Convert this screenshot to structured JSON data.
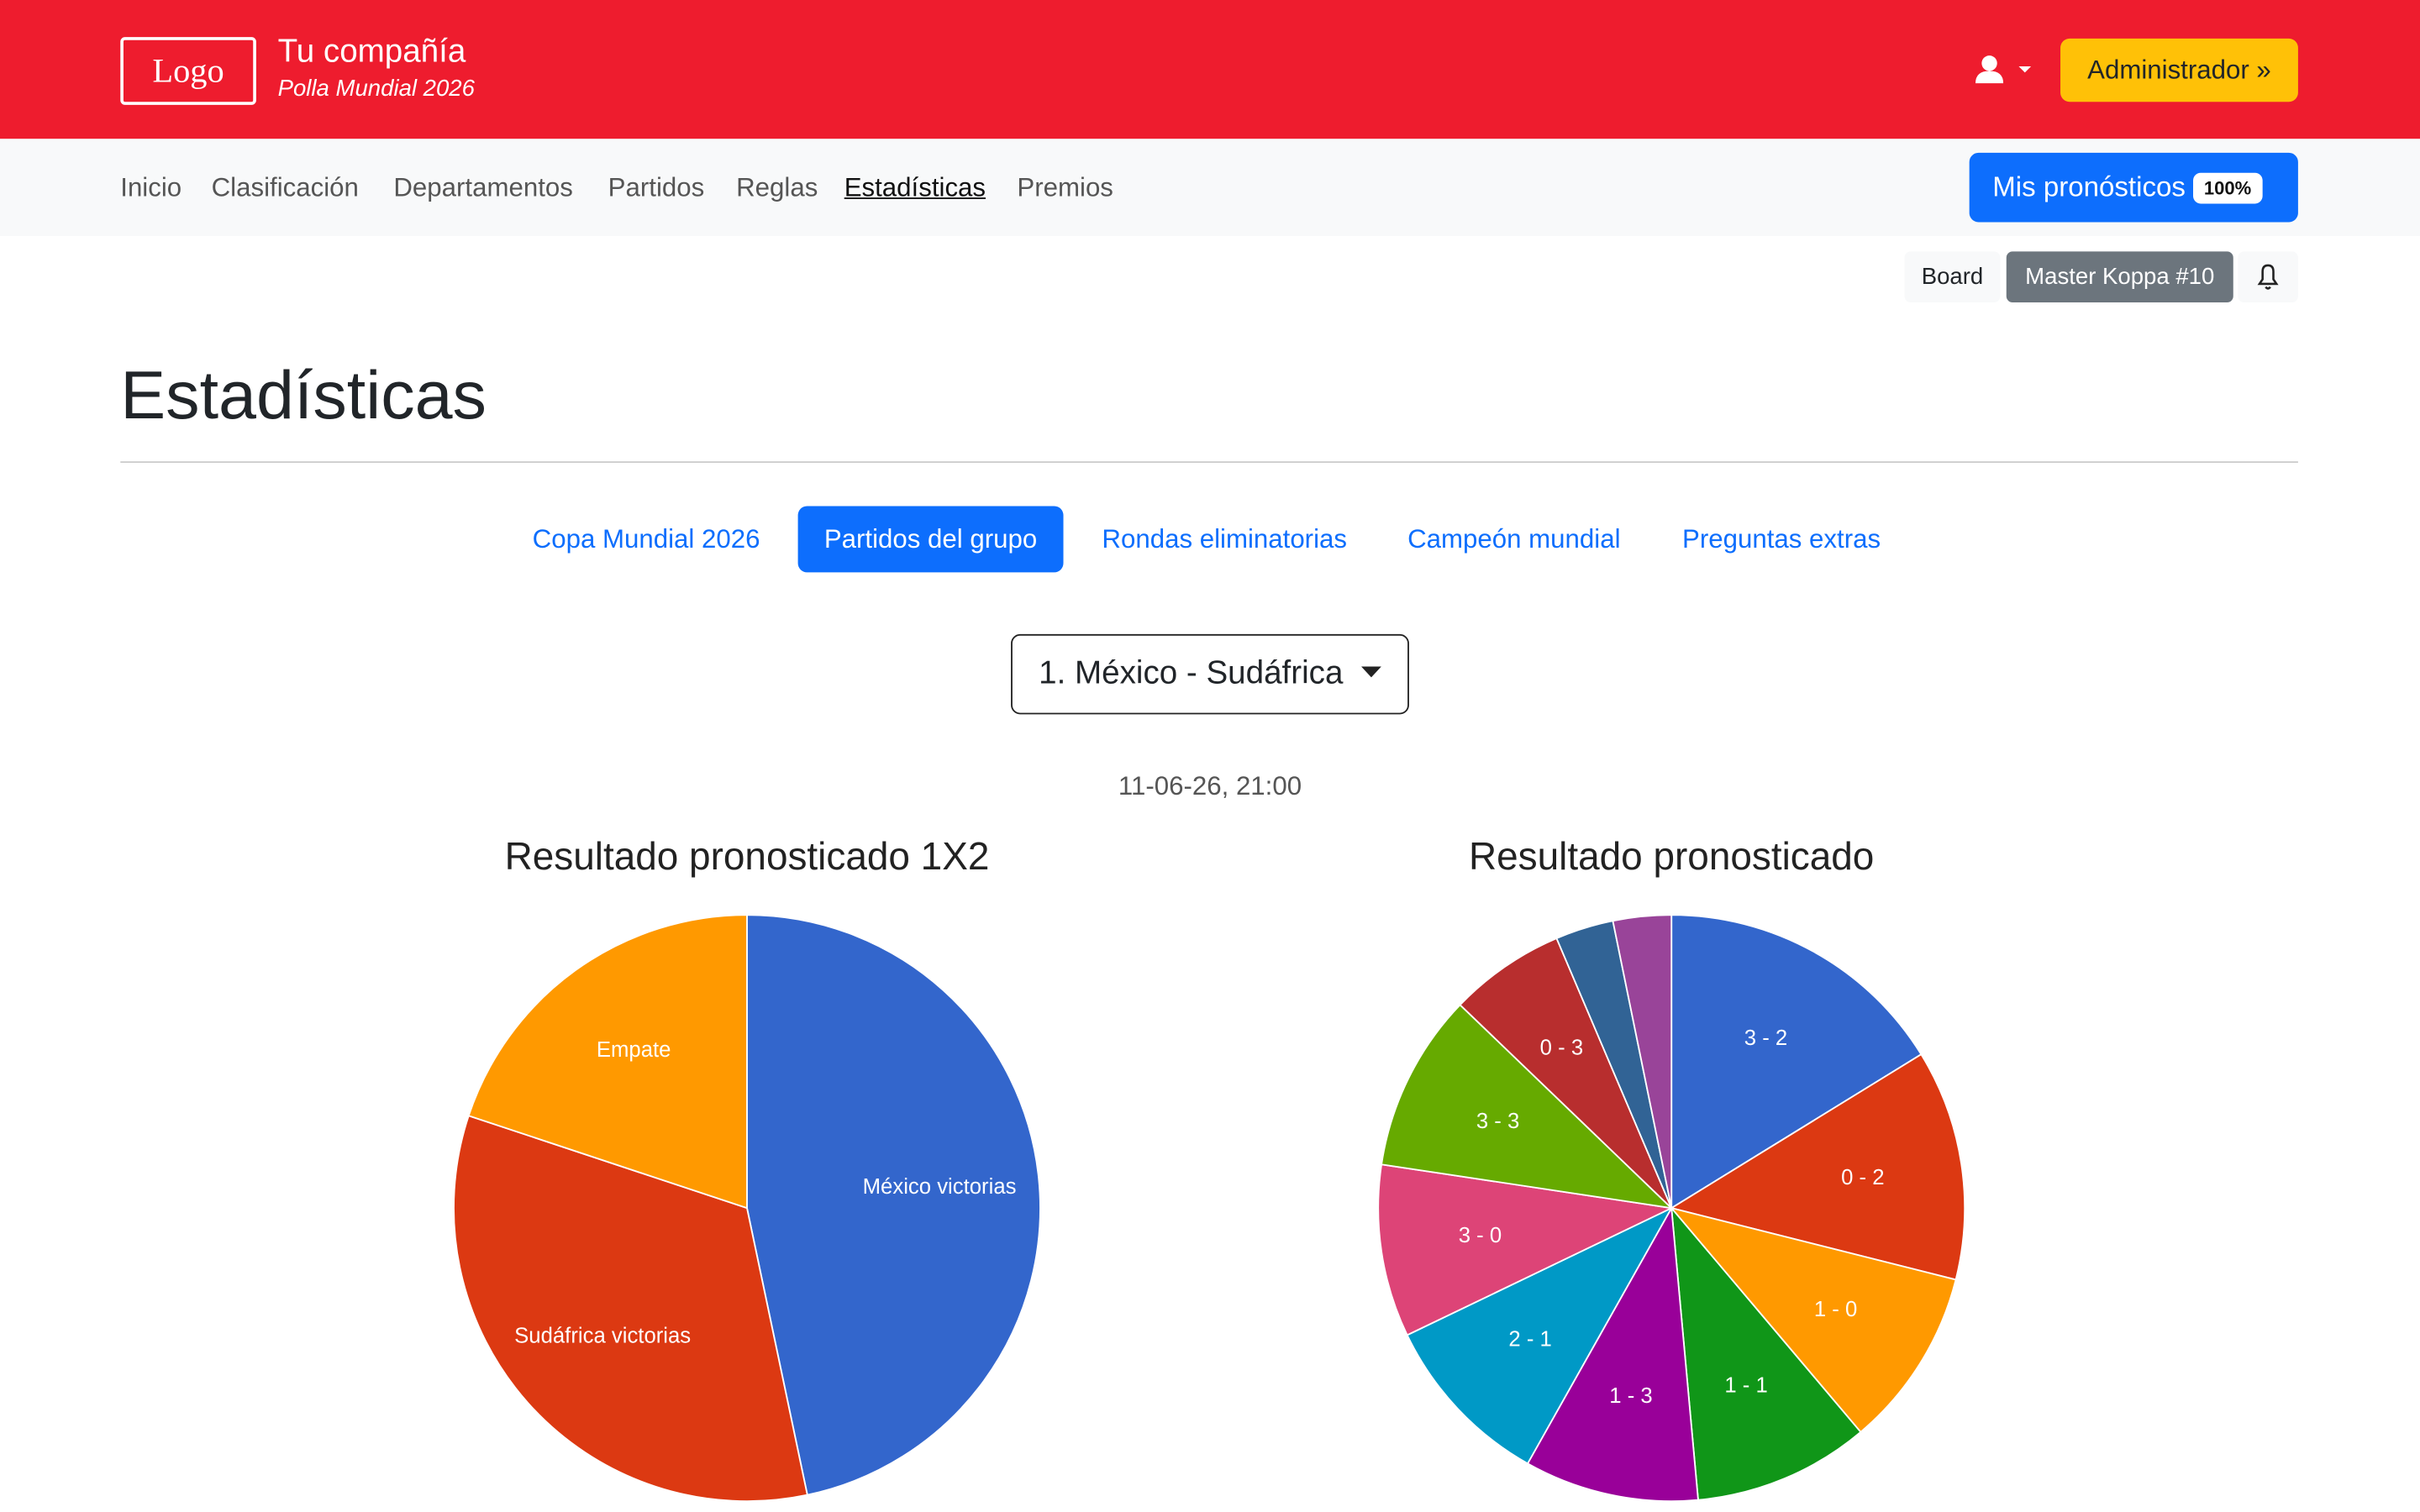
{
  "header": {
    "logo": "Logo",
    "company": "Tu compañía",
    "subtitle": "Polla Mundial 2026",
    "admin_button": "Administrador »"
  },
  "nav": {
    "links": [
      "Inicio",
      "Clasificación",
      "Departamentos",
      "Partidos",
      "Reglas",
      "Estadísticas",
      "Premios"
    ],
    "active": 5,
    "predictions_button": "Mis pronósticos",
    "predictions_badge": "100%"
  },
  "toolbar": {
    "board": "Board",
    "user": "Master Koppa #10"
  },
  "page_title": "Estadísticas",
  "tabs": {
    "items": [
      "Copa Mundial 2026",
      "Partidos del grupo",
      "Rondas eliminatorias",
      "Campeón mundial",
      "Preguntas extras"
    ],
    "active": 1
  },
  "match_select": "1. México - Sudáfrica",
  "match_date": "11-06-26, 21:00",
  "chart_data": [
    {
      "type": "pie",
      "title": "Resultado pronosticado 1X2",
      "categories": [
        "México victorias",
        "Sudáfrica victorias",
        "Empate"
      ],
      "values": [
        46.7,
        33.4,
        19.9
      ],
      "colors": [
        "#3366cc",
        "#dc3912",
        "#ff9900"
      ]
    },
    {
      "type": "pie",
      "title": "Resultado pronosticado",
      "categories": [
        "3 - 2",
        "0 - 2",
        "1 - 0",
        "1 - 1",
        "1 - 3",
        "2 - 1",
        "3 - 0",
        "3 - 3",
        "0 - 3",
        null,
        null
      ],
      "values": [
        16.2,
        12.7,
        9.9,
        9.7,
        9.6,
        9.7,
        9.5,
        9.8,
        6.4,
        3.2,
        3.2
      ],
      "colors": [
        "#3366cc",
        "#dc3912",
        "#ff9900",
        "#109618",
        "#990099",
        "#0099c6",
        "#dd4477",
        "#66aa00",
        "#b82e2e",
        "#316395",
        "#994499"
      ]
    }
  ]
}
